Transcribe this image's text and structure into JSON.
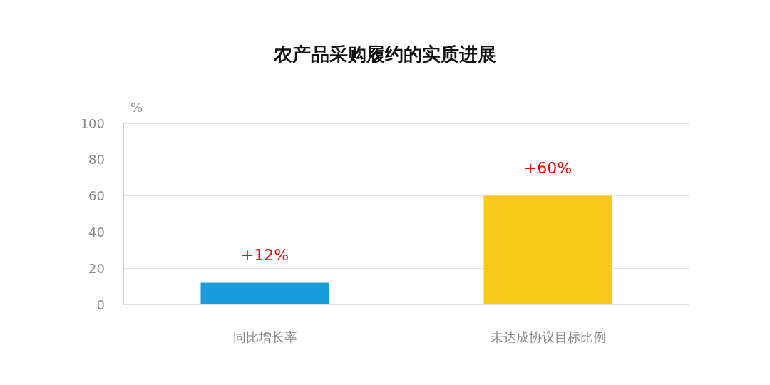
{
  "chart_data": {
    "type": "bar",
    "title": "农产品采购履约的实质进展",
    "ylabel": "%",
    "categories": [
      "同比增长率",
      "未达成协议目标比例"
    ],
    "values": [
      12,
      60
    ],
    "colors": [
      "#1a9cdb",
      "#f7c919"
    ],
    "value_labels": [
      "+12%",
      "+60%"
    ],
    "ylim": [
      0,
      100
    ],
    "yticks": [
      0,
      20,
      40,
      60,
      80,
      100
    ],
    "grid": "y"
  }
}
